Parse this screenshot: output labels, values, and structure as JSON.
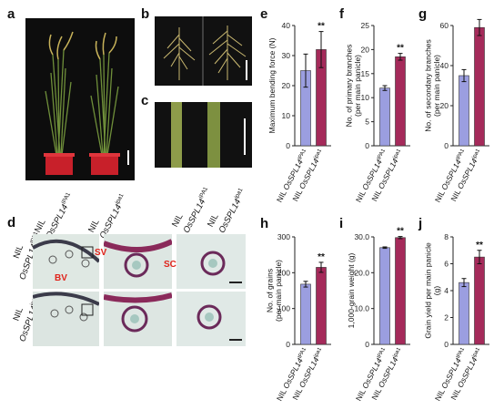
{
  "panel_letters": {
    "a": "a",
    "b": "b",
    "c": "c",
    "d": "d",
    "e": "e",
    "f": "f",
    "g": "g",
    "h": "h",
    "i": "i",
    "j": "j"
  },
  "colors": {
    "ipa1": "#9b9ee0",
    "ipa1_text": "#9b9ee0",
    "wt": "#a52a5a",
    "photo_bg": "#111111",
    "pot": "#c8202a"
  },
  "genotypes": {
    "nil_prefix": "NIL",
    "gene": "OsSPL14",
    "ipa1_sup": "IPA1",
    "wt_sup": "ipa1",
    "wt_sup_bar": "ipa1"
  },
  "photo_labels": {
    "d_row1_nil": "NIL",
    "d_row1_gene": "OsSPL14",
    "d_row1_sup": "IPA1",
    "d_row2_nil": "NIL",
    "d_row2_gene": "OsSPL14",
    "d_row2_sup": "ipa1",
    "sv": "SV",
    "bv": "BV",
    "sc": "SC"
  },
  "chart_data": [
    {
      "panel": "e",
      "type": "bar",
      "categories": [
        "NIL OsSPL14 IPA1",
        "NIL OsSPL14 ipa1"
      ],
      "values": [
        25,
        32
      ],
      "errors": [
        5.5,
        6
      ],
      "ylabel": "Maximum bending force (N)",
      "ylim": [
        0,
        40
      ],
      "yticks": [
        0,
        10,
        20,
        30,
        40
      ],
      "sig": "**"
    },
    {
      "panel": "f",
      "type": "bar",
      "categories": [
        "NIL OsSPL14 IPA1",
        "NIL OsSPL14 ipa1"
      ],
      "values": [
        12,
        18.5
      ],
      "errors": [
        0.5,
        0.7
      ],
      "ylabel": "No. of primary branches (per main panicle)",
      "ylim": [
        0,
        25
      ],
      "yticks": [
        0,
        5,
        10,
        15,
        20,
        25
      ],
      "sig": "**"
    },
    {
      "panel": "g",
      "type": "bar",
      "categories": [
        "NIL OsSPL14 IPA1",
        "NIL OsSPL14 ipa1"
      ],
      "values": [
        35,
        59
      ],
      "errors": [
        3,
        4
      ],
      "ylabel": "No. of secondary branches (per main panicle)",
      "ylim": [
        0,
        60
      ],
      "yticks": [
        0,
        20,
        40,
        60
      ],
      "sig": "**"
    },
    {
      "panel": "h",
      "type": "bar",
      "categories": [
        "NIL OsSPL14 IPA1",
        "NIL OsSPL14 ipa1"
      ],
      "values": [
        168,
        215
      ],
      "errors": [
        8,
        14
      ],
      "ylabel": "No. of grains (per main panicle)",
      "ylim": [
        0,
        300
      ],
      "yticks": [
        0,
        100,
        200,
        300
      ],
      "sig": "**"
    },
    {
      "panel": "i",
      "type": "bar",
      "categories": [
        "NIL OsSPL14 IPA1",
        "NIL OsSPL14 ipa1"
      ],
      "values": [
        27.0,
        29.8
      ],
      "errors": [
        0.2,
        0.3
      ],
      "ylabel": "1,000-grain weight (g)",
      "ylim": [
        0,
        30
      ],
      "yticks": [
        0,
        10,
        20,
        30
      ],
      "ytick_labels": [
        "0",
        "10.0",
        "20.0",
        "30.0"
      ],
      "sig": "**"
    },
    {
      "panel": "j",
      "type": "bar",
      "categories": [
        "NIL OsSPL14 IPA1",
        "NIL OsSPL14 ipa1"
      ],
      "values": [
        4.6,
        6.5
      ],
      "errors": [
        0.3,
        0.5
      ],
      "ylabel": "Grain yield per main panicle (g)",
      "ylim": [
        0,
        8
      ],
      "yticks": [
        0,
        2,
        4,
        6,
        8
      ],
      "sig": "**"
    }
  ]
}
